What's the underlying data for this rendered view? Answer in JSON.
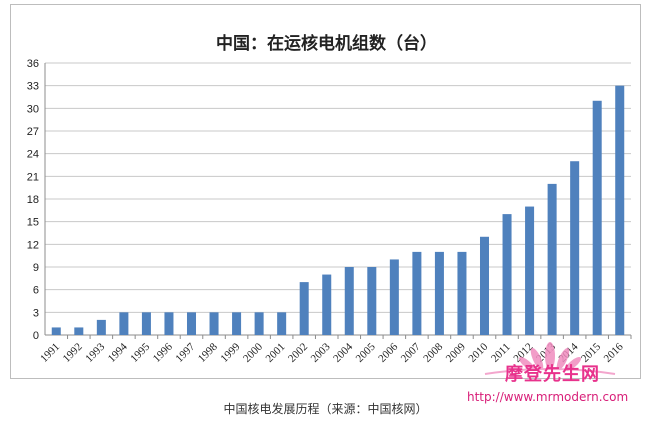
{
  "chart_data": {
    "type": "bar",
    "title": "中国：在运核电机组数（台）",
    "xlabel": "",
    "ylabel": "",
    "ylim": [
      0,
      36
    ],
    "yticks": [
      0,
      3,
      6,
      9,
      12,
      15,
      18,
      21,
      24,
      27,
      30,
      33,
      36
    ],
    "grid": true,
    "bar_color": "#4f81bd",
    "categories": [
      "1991",
      "1992",
      "1993",
      "1994",
      "1995",
      "1996",
      "1997",
      "1998",
      "1999",
      "2000",
      "2001",
      "2002",
      "2003",
      "2004",
      "2005",
      "2006",
      "2007",
      "2008",
      "2009",
      "2010",
      "2011",
      "2012",
      "2013",
      "2014",
      "2015",
      "2016"
    ],
    "values": [
      1,
      1,
      2,
      3,
      3,
      3,
      3,
      3,
      3,
      3,
      3,
      7,
      8,
      9,
      9,
      10,
      11,
      11,
      11,
      13,
      16,
      17,
      20,
      23,
      31,
      33
    ]
  },
  "caption": "中国核电发展历程（来源：中国核网）",
  "watermark": {
    "text": "摩登先生网",
    "url": "http://www.mrmodern.com",
    "color": "#e8328c"
  }
}
